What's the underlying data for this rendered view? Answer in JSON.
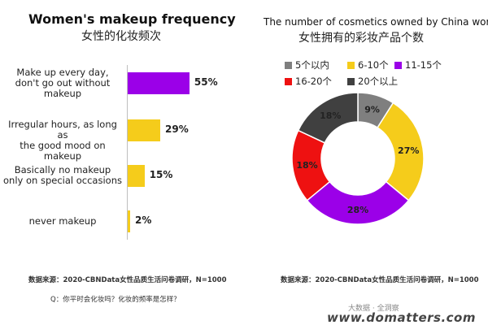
{
  "left": {
    "title_en": "Women's makeup frequency",
    "title_cn": "女性的化妆频次",
    "source": "数据来源：2020-CBNData女性品质生活问卷调研，N=1000",
    "question": "Q：你平时会化妆吗？化妆的频率是怎样？"
  },
  "right": {
    "title_en": "The number of cosmetics owned by China women",
    "title_cn": "女性拥有的彩妆产品个数",
    "source": "数据来源：2020-CBNData女性品质生活问卷调研，N=1000"
  },
  "footer": {
    "watermark": "大数据 · 全洞察",
    "site": "www.domatters.com"
  },
  "chart_data": [
    {
      "type": "bar",
      "orientation": "horizontal",
      "title": "Women's makeup frequency",
      "subtitle": "女性的化妆频次",
      "categories": [
        "Make up every day, don't go out without makeup",
        "Irregular hours, as long as the good mood on makeup",
        "Basically no makeup only on special occasions",
        "never makeup"
      ],
      "category_lines": [
        [
          "Make up every day,",
          "don't go out without",
          "makeup"
        ],
        [
          "Irregular hours, as long as",
          "the good mood on makeup"
        ],
        [
          "Basically no makeup",
          "only on special occasions"
        ],
        [
          "never makeup"
        ]
      ],
      "values": [
        55,
        29,
        15,
        2
      ],
      "value_labels": [
        "55%",
        "29%",
        "15%",
        "2%"
      ],
      "unit": "%",
      "colors": [
        "#9b00e8",
        "#f5cc1b",
        "#f5cc1b",
        "#f5cc1b"
      ],
      "xlim": [
        0,
        100
      ]
    },
    {
      "type": "pie",
      "donut": true,
      "title": "The number of cosmetics owned by China women",
      "subtitle": "女性拥有的彩妆产品个数",
      "categories": [
        "5个以内",
        "6-10个",
        "11-15个",
        "16-20个",
        "20个以上"
      ],
      "values": [
        9,
        27,
        28,
        18,
        18
      ],
      "value_labels": [
        "9%",
        "27%",
        "28%",
        "18%",
        "18%"
      ],
      "colors": [
        "#7f7f7f",
        "#f5cc1b",
        "#9b00e8",
        "#ee1111",
        "#404040"
      ],
      "legend_position": "top"
    }
  ]
}
